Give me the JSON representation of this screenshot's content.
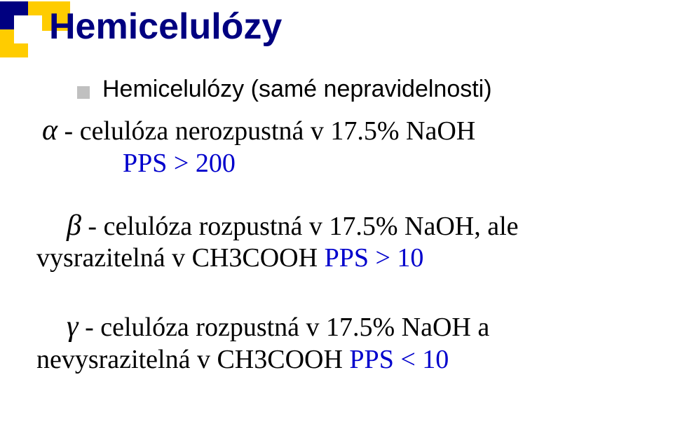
{
  "title": "Hemicelulózy",
  "bullet": "Hemicelulózy (samé nepravidelnosti)",
  "alpha": {
    "sym": "α",
    "text": " - celulóza nerozpustná v 17.5% NaOH",
    "pps": "PPS > 200"
  },
  "beta": {
    "sym": "β",
    "text": " - celulóza rozpustná v 17.5% NaOH, ale",
    "line2a": "vysrazitelná v ",
    "line2b": "CH3COOH  ",
    "pps": "PPS > 10"
  },
  "gamma": {
    "sym": "γ",
    "text": " - celulóza rozpustná v 17.5% NaOH a",
    "line2a": "nevysrazitelná v ",
    "line2b": "CH3COOH  ",
    "pps": "PPS < 10"
  },
  "colors": {
    "title": "#000080",
    "blue": "#0000cc",
    "bullet": "#c0c0c0",
    "deco_yellow": "#ffcc00",
    "deco_navy": "#000080"
  }
}
